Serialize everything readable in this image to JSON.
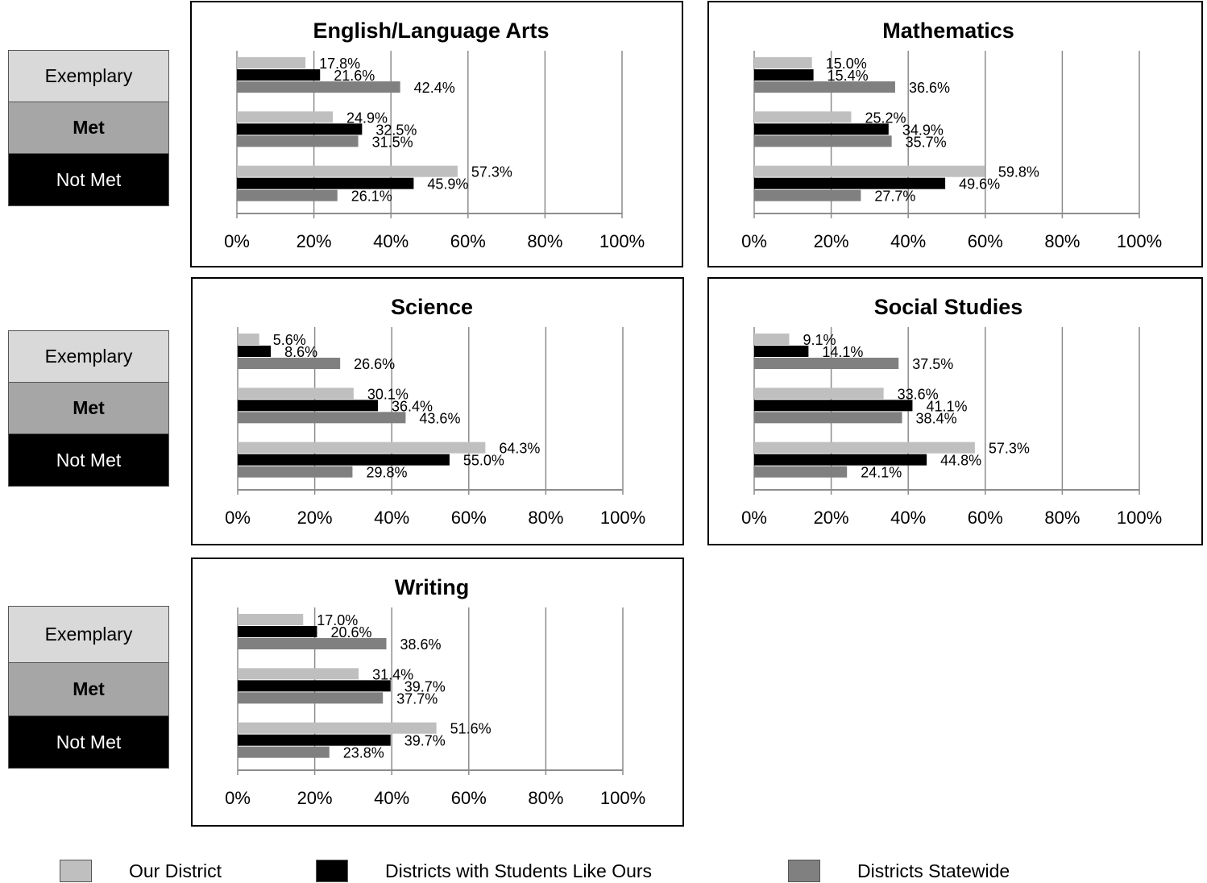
{
  "row_labels": {
    "exemplary": "Exemplary",
    "met": "Met",
    "not_met": "Not Met"
  },
  "legend": [
    {
      "name": "Our District",
      "color": "#bfbfbf"
    },
    {
      "name": "Districts with Students Like Ours",
      "color": "#000000"
    },
    {
      "name": "Districts Statewide",
      "color": "#808080"
    }
  ],
  "chart_data": [
    {
      "type": "bar",
      "title": "English/Language Arts",
      "orientation": "horizontal",
      "categories": [
        "Exemplary",
        "Met",
        "Not Met"
      ],
      "xlim": [
        0,
        100
      ],
      "xticks": [
        "0%",
        "20%",
        "40%",
        "60%",
        "80%",
        "100%"
      ],
      "series": [
        {
          "name": "Our District",
          "values": [
            17.8,
            24.9,
            57.3
          ]
        },
        {
          "name": "Districts with Students Like Ours",
          "values": [
            21.6,
            32.5,
            45.9
          ]
        },
        {
          "name": "Districts Statewide",
          "values": [
            42.4,
            31.5,
            26.1
          ]
        }
      ]
    },
    {
      "type": "bar",
      "title": "Mathematics",
      "orientation": "horizontal",
      "categories": [
        "Exemplary",
        "Met",
        "Not Met"
      ],
      "xlim": [
        0,
        100
      ],
      "xticks": [
        "0%",
        "20%",
        "40%",
        "60%",
        "80%",
        "100%"
      ],
      "series": [
        {
          "name": "Our District",
          "values": [
            15.0,
            25.2,
            59.8
          ]
        },
        {
          "name": "Districts with Students Like Ours",
          "values": [
            15.4,
            34.9,
            49.6
          ]
        },
        {
          "name": "Districts Statewide",
          "values": [
            36.6,
            35.7,
            27.7
          ]
        }
      ]
    },
    {
      "type": "bar",
      "title": "Science",
      "orientation": "horizontal",
      "categories": [
        "Exemplary",
        "Met",
        "Not Met"
      ],
      "xlim": [
        0,
        100
      ],
      "xticks": [
        "0%",
        "20%",
        "40%",
        "60%",
        "80%",
        "100%"
      ],
      "series": [
        {
          "name": "Our District",
          "values": [
            5.6,
            30.1,
            64.3
          ]
        },
        {
          "name": "Districts with Students Like Ours",
          "values": [
            8.6,
            36.4,
            55.0
          ]
        },
        {
          "name": "Districts Statewide",
          "values": [
            26.6,
            43.6,
            29.8
          ]
        }
      ]
    },
    {
      "type": "bar",
      "title": "Social Studies",
      "orientation": "horizontal",
      "categories": [
        "Exemplary",
        "Met",
        "Not Met"
      ],
      "xlim": [
        0,
        100
      ],
      "xticks": [
        "0%",
        "20%",
        "40%",
        "60%",
        "80%",
        "100%"
      ],
      "series": [
        {
          "name": "Our District",
          "values": [
            9.1,
            33.6,
            57.3
          ]
        },
        {
          "name": "Districts with Students Like Ours",
          "values": [
            14.1,
            41.1,
            44.8
          ]
        },
        {
          "name": "Districts Statewide",
          "values": [
            37.5,
            38.4,
            24.1
          ]
        }
      ]
    },
    {
      "type": "bar",
      "title": "Writing",
      "orientation": "horizontal",
      "categories": [
        "Exemplary",
        "Met",
        "Not Met"
      ],
      "xlim": [
        0,
        100
      ],
      "xticks": [
        "0%",
        "20%",
        "40%",
        "60%",
        "80%",
        "100%"
      ],
      "series": [
        {
          "name": "Our District",
          "values": [
            17.0,
            31.4,
            51.6
          ]
        },
        {
          "name": "Districts with Students Like Ours",
          "values": [
            20.6,
            39.7,
            39.7
          ]
        },
        {
          "name": "Districts Statewide",
          "values": [
            38.6,
            37.7,
            23.8
          ]
        }
      ]
    }
  ]
}
